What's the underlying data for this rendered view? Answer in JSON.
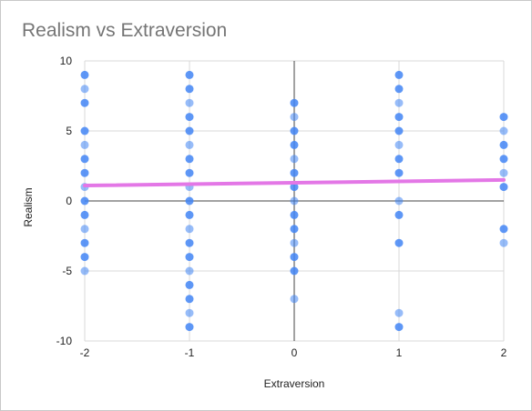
{
  "chart_data": {
    "type": "scatter",
    "title": "Realism vs Extraversion",
    "xlabel": "Extraversion",
    "ylabel": "Realism",
    "xlim": [
      -2,
      2
    ],
    "ylim": [
      -10,
      10
    ],
    "x_ticks": [
      "-2",
      "-1",
      "0",
      "1",
      "2"
    ],
    "y_ticks": [
      "10",
      "5",
      "0",
      "-5",
      "-10"
    ],
    "grid": true,
    "legend": "none",
    "point_color": "#4285f4",
    "trendline_color": "#e377e6",
    "points": [
      {
        "x": -2,
        "y": 9
      },
      {
        "x": -2,
        "y": 8
      },
      {
        "x": -2,
        "y": 7
      },
      {
        "x": -2,
        "y": 5
      },
      {
        "x": -2,
        "y": 4
      },
      {
        "x": -2,
        "y": 3
      },
      {
        "x": -2,
        "y": 2
      },
      {
        "x": -2,
        "y": 1
      },
      {
        "x": -2,
        "y": 0
      },
      {
        "x": -2,
        "y": -1
      },
      {
        "x": -2,
        "y": -2
      },
      {
        "x": -2,
        "y": -3
      },
      {
        "x": -2,
        "y": -4
      },
      {
        "x": -2,
        "y": -5
      },
      {
        "x": -1,
        "y": 9
      },
      {
        "x": -1,
        "y": 8
      },
      {
        "x": -1,
        "y": 7
      },
      {
        "x": -1,
        "y": 6
      },
      {
        "x": -1,
        "y": 5
      },
      {
        "x": -1,
        "y": 4
      },
      {
        "x": -1,
        "y": 3
      },
      {
        "x": -1,
        "y": 2
      },
      {
        "x": -1,
        "y": 1
      },
      {
        "x": -1,
        "y": 0
      },
      {
        "x": -1,
        "y": -1
      },
      {
        "x": -1,
        "y": -2
      },
      {
        "x": -1,
        "y": -3
      },
      {
        "x": -1,
        "y": -4
      },
      {
        "x": -1,
        "y": -5
      },
      {
        "x": -1,
        "y": -6
      },
      {
        "x": -1,
        "y": -7
      },
      {
        "x": -1,
        "y": -8
      },
      {
        "x": -1,
        "y": -9
      },
      {
        "x": 0,
        "y": 7
      },
      {
        "x": 0,
        "y": 6
      },
      {
        "x": 0,
        "y": 5
      },
      {
        "x": 0,
        "y": 4
      },
      {
        "x": 0,
        "y": 3
      },
      {
        "x": 0,
        "y": 2
      },
      {
        "x": 0,
        "y": 1
      },
      {
        "x": 0,
        "y": 0
      },
      {
        "x": 0,
        "y": -1
      },
      {
        "x": 0,
        "y": -2
      },
      {
        "x": 0,
        "y": -3
      },
      {
        "x": 0,
        "y": -4
      },
      {
        "x": 0,
        "y": -5
      },
      {
        "x": 0,
        "y": -7
      },
      {
        "x": 1,
        "y": 9
      },
      {
        "x": 1,
        "y": 8
      },
      {
        "x": 1,
        "y": 7
      },
      {
        "x": 1,
        "y": 6
      },
      {
        "x": 1,
        "y": 5
      },
      {
        "x": 1,
        "y": 4
      },
      {
        "x": 1,
        "y": 3
      },
      {
        "x": 1,
        "y": 2
      },
      {
        "x": 1,
        "y": 0
      },
      {
        "x": 1,
        "y": -1
      },
      {
        "x": 1,
        "y": -3
      },
      {
        "x": 1,
        "y": -8
      },
      {
        "x": 1,
        "y": -9
      },
      {
        "x": 2,
        "y": 6
      },
      {
        "x": 2,
        "y": 5
      },
      {
        "x": 2,
        "y": 4
      },
      {
        "x": 2,
        "y": 3
      },
      {
        "x": 2,
        "y": 2
      },
      {
        "x": 2,
        "y": 1
      },
      {
        "x": 2,
        "y": -2
      },
      {
        "x": 2,
        "y": -3
      }
    ],
    "trendline": {
      "x": [
        -2,
        2
      ],
      "y": [
        1.1,
        1.5
      ]
    }
  }
}
